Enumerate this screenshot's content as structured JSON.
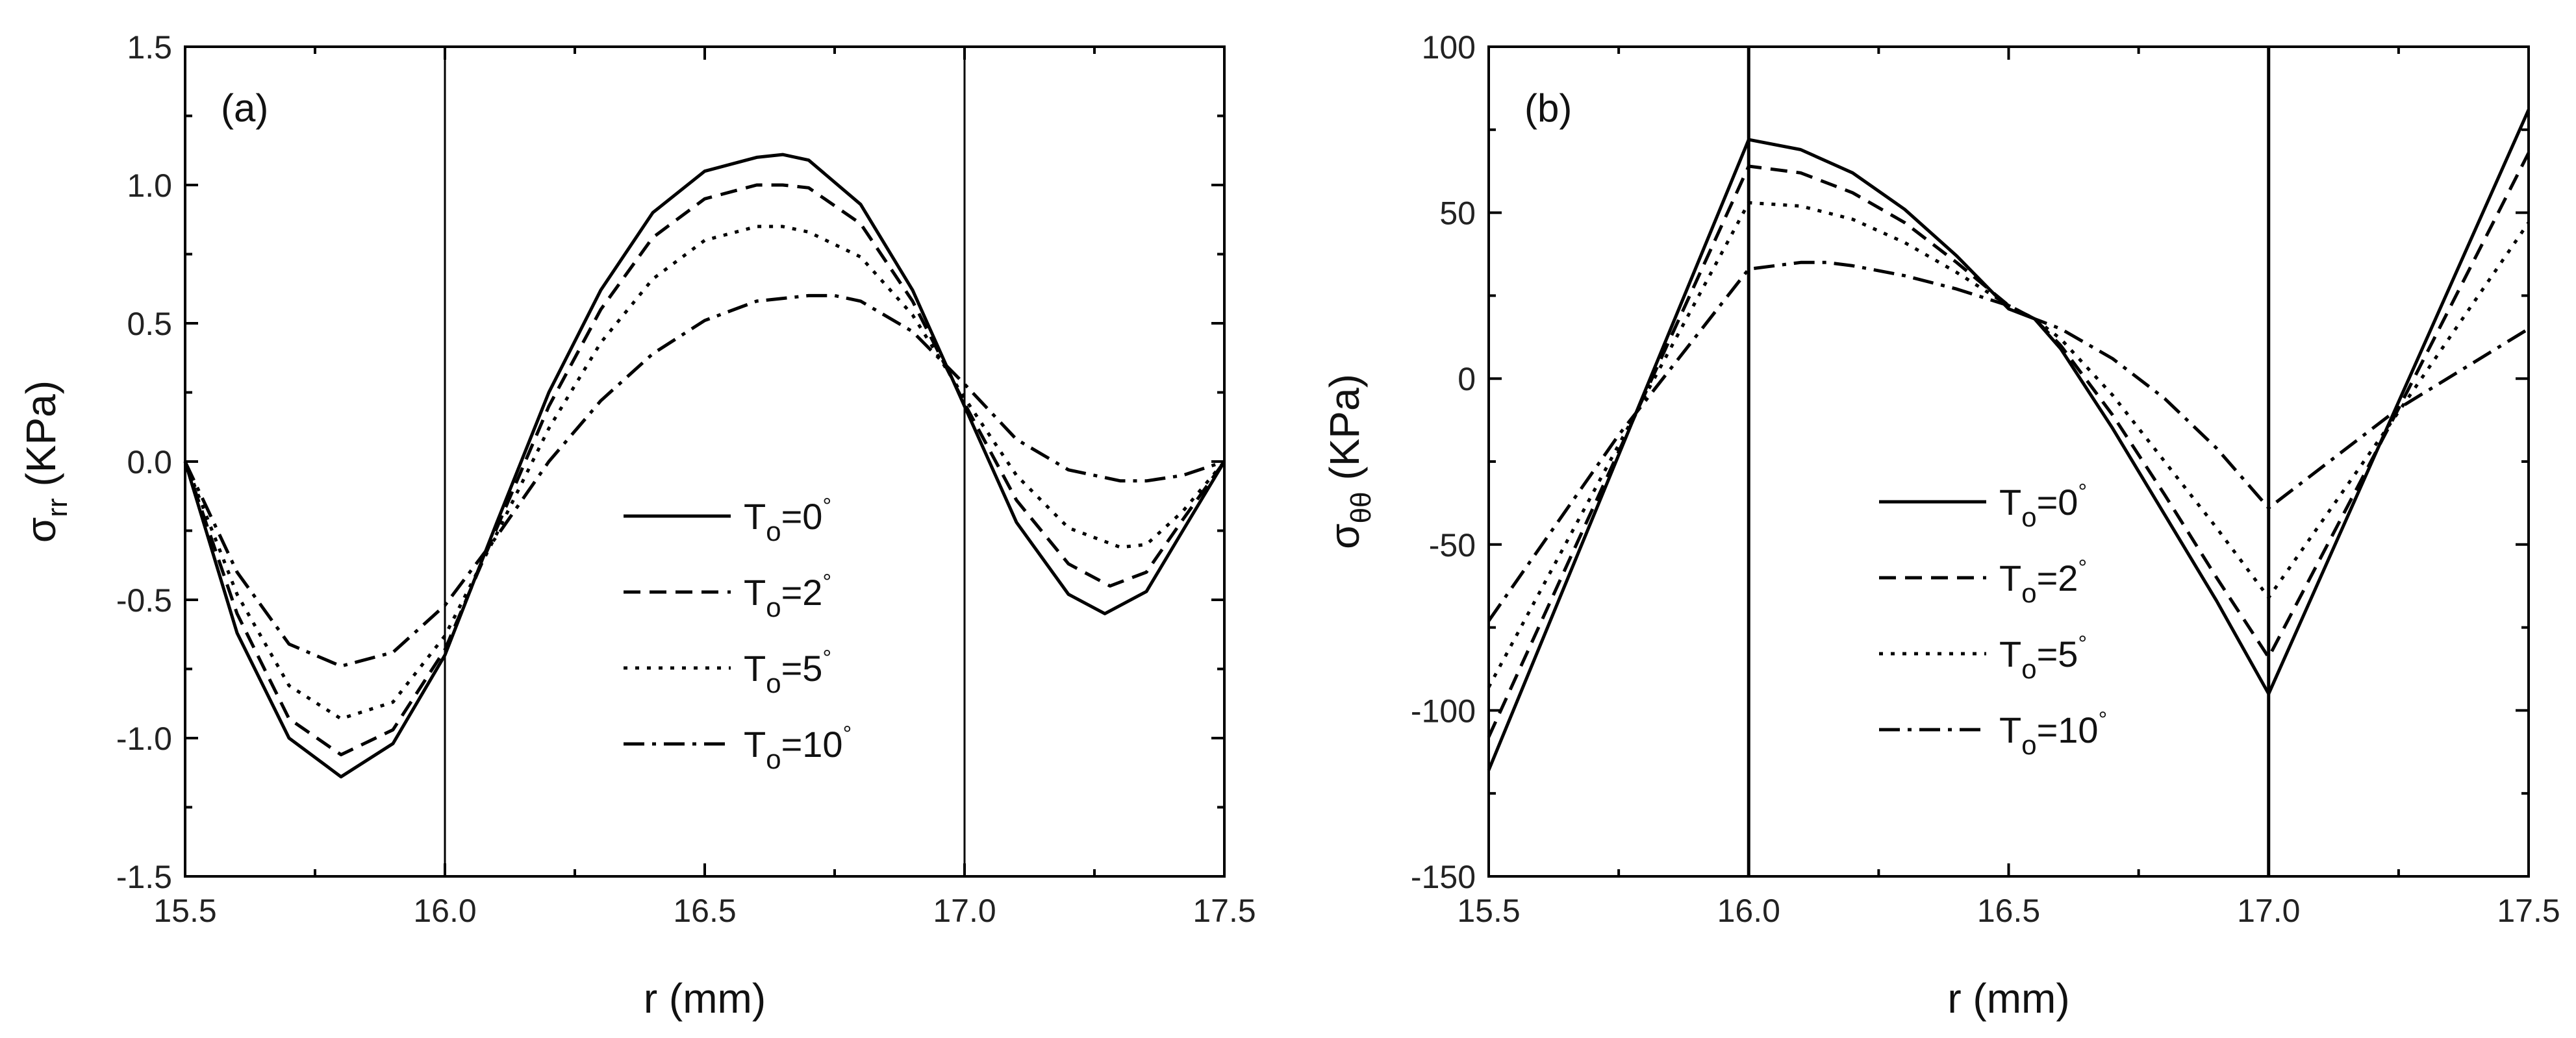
{
  "chart_data": [
    {
      "panel": "(a)",
      "type": "line",
      "xlabel": "r (mm)",
      "ylabel": {
        "main": "σ",
        "sub": "rr",
        "unit": "(KPa)"
      },
      "xlim": [
        15.5,
        17.5
      ],
      "ylim": [
        -1.5,
        1.5
      ],
      "xticks": [
        "15.5",
        "16.0",
        "16.5",
        "17.0",
        "17.5"
      ],
      "yticks": [
        "-1.5",
        "-1.0",
        "-0.5",
        "0.0",
        "0.5",
        "1.0",
        "1.5"
      ],
      "xtick_values": [
        15.5,
        16.0,
        16.5,
        17.0,
        17.5
      ],
      "ytick_values": [
        -1.5,
        -1.0,
        -0.5,
        0.0,
        0.5,
        1.0,
        1.5
      ],
      "vlines": [
        16.0,
        17.0
      ],
      "legend": [
        {
          "main": "T",
          "sub": "o",
          "suffix": "=0",
          "deg": "°"
        },
        {
          "main": "T",
          "sub": "o",
          "suffix": "=2",
          "deg": "°"
        },
        {
          "main": "T",
          "sub": "o",
          "suffix": "=5",
          "deg": "°"
        },
        {
          "main": "T",
          "sub": "o",
          "suffix": "=10",
          "deg": "°"
        }
      ],
      "series": [
        {
          "name": "To=0°",
          "dash": "solid",
          "x": [
            15.5,
            15.6,
            15.7,
            15.8,
            15.9,
            16.0,
            16.1,
            16.2,
            16.3,
            16.4,
            16.5,
            16.6,
            16.65,
            16.7,
            16.8,
            16.9,
            17.0,
            17.1,
            17.2,
            17.27,
            17.35,
            17.42,
            17.5
          ],
          "y": [
            0.0,
            -0.62,
            -1.0,
            -1.14,
            -1.02,
            -0.7,
            -0.22,
            0.25,
            0.62,
            0.9,
            1.05,
            1.1,
            1.11,
            1.09,
            0.93,
            0.62,
            0.2,
            -0.22,
            -0.48,
            -0.55,
            -0.47,
            -0.25,
            0.0
          ]
        },
        {
          "name": "To=2°",
          "dash": "dashed",
          "x": [
            15.5,
            15.6,
            15.7,
            15.8,
            15.9,
            16.0,
            16.1,
            16.2,
            16.3,
            16.4,
            16.5,
            16.6,
            16.65,
            16.7,
            16.8,
            16.9,
            17.0,
            17.1,
            17.2,
            17.28,
            17.35,
            17.42,
            17.5
          ],
          "y": [
            0.0,
            -0.55,
            -0.93,
            -1.06,
            -0.97,
            -0.68,
            -0.24,
            0.2,
            0.55,
            0.81,
            0.95,
            1.0,
            1.0,
            0.99,
            0.86,
            0.58,
            0.21,
            -0.14,
            -0.37,
            -0.45,
            -0.4,
            -0.21,
            0.0
          ]
        },
        {
          "name": "To=5°",
          "dash": "dotted",
          "x": [
            15.5,
            15.6,
            15.7,
            15.8,
            15.9,
            16.0,
            16.1,
            16.2,
            16.3,
            16.4,
            16.5,
            16.6,
            16.65,
            16.7,
            16.8,
            16.9,
            17.0,
            17.1,
            17.2,
            17.3,
            17.35,
            17.42,
            17.5
          ],
          "y": [
            0.0,
            -0.48,
            -0.81,
            -0.93,
            -0.87,
            -0.63,
            -0.26,
            0.12,
            0.43,
            0.66,
            0.8,
            0.85,
            0.85,
            0.83,
            0.74,
            0.53,
            0.23,
            -0.05,
            -0.24,
            -0.31,
            -0.3,
            -0.18,
            0.0
          ]
        },
        {
          "name": "To=10°",
          "dash": "dashdot",
          "x": [
            15.5,
            15.6,
            15.7,
            15.8,
            15.9,
            16.0,
            16.1,
            16.2,
            16.3,
            16.4,
            16.5,
            16.6,
            16.7,
            16.75,
            16.8,
            16.9,
            17.0,
            17.1,
            17.2,
            17.3,
            17.35,
            17.42,
            17.5
          ],
          "y": [
            0.0,
            -0.4,
            -0.66,
            -0.74,
            -0.69,
            -0.52,
            -0.27,
            0.0,
            0.22,
            0.39,
            0.51,
            0.58,
            0.6,
            0.6,
            0.58,
            0.47,
            0.28,
            0.08,
            -0.03,
            -0.07,
            -0.07,
            -0.05,
            0.0
          ]
        }
      ]
    },
    {
      "panel": "(b)",
      "type": "line",
      "xlabel": "r (mm)",
      "ylabel": {
        "main": "σ",
        "sub": "θθ",
        "unit": "(KPa)"
      },
      "xlim": [
        15.5,
        17.5
      ],
      "ylim": [
        -150,
        100
      ],
      "xticks": [
        "15.5",
        "16.0",
        "16.5",
        "17.0",
        "17.5"
      ],
      "yticks": [
        "-150",
        "-100",
        "-50",
        "0",
        "50",
        "100"
      ],
      "xtick_values": [
        15.5,
        16.0,
        16.5,
        17.0,
        17.5
      ],
      "ytick_values": [
        -150,
        -100,
        -50,
        0,
        50,
        100
      ],
      "vlines": [
        16.0,
        17.0
      ],
      "legend": [
        {
          "main": "T",
          "sub": "o",
          "suffix": "=0",
          "deg": "°"
        },
        {
          "main": "T",
          "sub": "o",
          "suffix": "=2",
          "deg": "°"
        },
        {
          "main": "T",
          "sub": "o",
          "suffix": "=5",
          "deg": "°"
        },
        {
          "main": "T",
          "sub": "o",
          "suffix": "=10",
          "deg": "°"
        }
      ],
      "series": [
        {
          "name": "To=0°",
          "dash": "solid",
          "x": [
            15.5,
            15.75,
            16.0,
            16.1,
            16.2,
            16.3,
            16.4,
            16.5,
            16.55,
            16.6,
            16.7,
            16.8,
            16.9,
            17.0,
            17.25,
            17.5
          ],
          "y": [
            -118,
            -23,
            72,
            69,
            62,
            51,
            37,
            21,
            18,
            9,
            -15,
            -41,
            -67,
            -95,
            -7,
            81
          ]
        },
        {
          "name": "To=2°",
          "dash": "dashed",
          "x": [
            15.5,
            15.75,
            16.0,
            16.1,
            16.2,
            16.3,
            16.4,
            16.5,
            16.55,
            16.6,
            16.7,
            16.8,
            16.9,
            17.0,
            17.25,
            17.5
          ],
          "y": [
            -108,
            -22,
            64,
            62,
            56,
            47,
            35,
            22,
            18,
            10,
            -11,
            -35,
            -60,
            -84,
            -9,
            68
          ]
        },
        {
          "name": "To=5°",
          "dash": "dotted",
          "x": [
            15.5,
            15.75,
            16.0,
            16.1,
            16.2,
            16.3,
            16.4,
            16.5,
            16.55,
            16.6,
            16.7,
            16.8,
            16.9,
            17.0,
            17.25,
            17.5
          ],
          "y": [
            -93,
            -20,
            53,
            52,
            48,
            41,
            32,
            22,
            18,
            12,
            -5,
            -25,
            -45,
            -66,
            -10,
            47
          ]
        },
        {
          "name": "To=10°",
          "dash": "dashdot",
          "x": [
            15.5,
            15.75,
            16.0,
            16.1,
            16.15,
            16.2,
            16.3,
            16.4,
            16.5,
            16.55,
            16.6,
            16.7,
            16.8,
            16.9,
            17.0,
            17.25,
            17.5
          ],
          "y": [
            -73,
            -17,
            33,
            35,
            35,
            34,
            31,
            27,
            22,
            18,
            15,
            6,
            -6,
            -21,
            -39,
            -9,
            15
          ]
        }
      ]
    }
  ]
}
